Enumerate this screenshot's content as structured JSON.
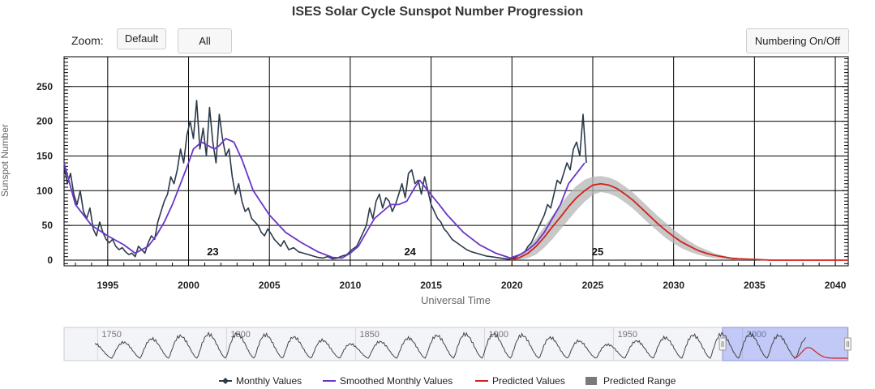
{
  "header": {
    "title": "ISES Solar Cycle Sunspot Number Progression",
    "zoom_label": "Zoom:",
    "btn_default": "Default",
    "btn_all": "All",
    "btn_numbering": "Numbering On/Off"
  },
  "chart_data": {
    "type": "line",
    "title": "ISES Solar Cycle Sunspot Number Progression",
    "xlabel": "Universal Time",
    "ylabel": "Sunspot Number",
    "xlim": [
      1992.3,
      2040.8
    ],
    "ylim": [
      0,
      290
    ],
    "x_ticks": [
      1995,
      2000,
      2005,
      2010,
      2015,
      2020,
      2025,
      2030,
      2035,
      2040
    ],
    "y_ticks": [
      0,
      50,
      100,
      150,
      200,
      250
    ],
    "grid": true,
    "cycle_labels": [
      {
        "label": "23",
        "x": 2001.5
      },
      {
        "label": "24",
        "x": 2013.7
      },
      {
        "label": "25",
        "x": 2025.3
      }
    ],
    "series": [
      {
        "name": "Monthly Values",
        "color": "#2b3a4a",
        "x": [
          1992.3,
          1992.5,
          1992.7,
          1992.9,
          1993.1,
          1993.3,
          1993.5,
          1993.7,
          1993.9,
          1994.1,
          1994.3,
          1994.5,
          1994.7,
          1994.9,
          1995.1,
          1995.3,
          1995.5,
          1995.7,
          1995.9,
          1996.1,
          1996.3,
          1996.5,
          1996.7,
          1996.9,
          1997.1,
          1997.3,
          1997.5,
          1997.7,
          1997.9,
          1998.1,
          1998.3,
          1998.5,
          1998.7,
          1998.9,
          1999.1,
          1999.3,
          1999.5,
          1999.7,
          1999.9,
          2000.1,
          2000.3,
          2000.5,
          2000.7,
          2000.9,
          2001.1,
          2001.3,
          2001.5,
          2001.7,
          2001.9,
          2002.1,
          2002.3,
          2002.5,
          2002.7,
          2002.9,
          2003.1,
          2003.3,
          2003.5,
          2003.7,
          2003.9,
          2004.1,
          2004.3,
          2004.5,
          2004.7,
          2004.9,
          2005.1,
          2005.3,
          2005.5,
          2005.7,
          2005.9,
          2006.2,
          2006.5,
          2006.8,
          2007.1,
          2007.4,
          2007.7,
          2008.0,
          2008.3,
          2008.6,
          2008.9,
          2009.2,
          2009.5,
          2009.8,
          2010.1,
          2010.4,
          2010.7,
          2011.0,
          2011.2,
          2011.4,
          2011.6,
          2011.8,
          2012.0,
          2012.2,
          2012.4,
          2012.6,
          2012.8,
          2013.0,
          2013.2,
          2013.4,
          2013.6,
          2013.8,
          2014.0,
          2014.2,
          2014.4,
          2014.6,
          2014.8,
          2015.0,
          2015.2,
          2015.4,
          2015.6,
          2015.8,
          2016.0,
          2016.3,
          2016.6,
          2016.9,
          2017.2,
          2017.5,
          2017.8,
          2018.1,
          2018.4,
          2018.7,
          2019.0,
          2019.3,
          2019.6,
          2019.9,
          2020.2,
          2020.5,
          2020.8,
          2021.0,
          2021.2,
          2021.4,
          2021.6,
          2021.8,
          2022.0,
          2022.2,
          2022.4,
          2022.6,
          2022.8,
          2023.0,
          2023.2,
          2023.4,
          2023.6,
          2023.8,
          2024.0,
          2024.2,
          2024.4,
          2024.6
        ],
        "values": [
          135,
          110,
          125,
          95,
          80,
          100,
          70,
          60,
          75,
          45,
          35,
          55,
          40,
          30,
          25,
          30,
          20,
          15,
          18,
          12,
          8,
          10,
          5,
          20,
          15,
          10,
          25,
          35,
          30,
          55,
          70,
          85,
          95,
          120,
          110,
          130,
          160,
          140,
          180,
          200,
          175,
          230,
          160,
          190,
          150,
          220,
          170,
          140,
          210,
          175,
          150,
          160,
          120,
          95,
          110,
          85,
          70,
          75,
          60,
          55,
          50,
          40,
          35,
          45,
          38,
          30,
          25,
          20,
          28,
          15,
          18,
          12,
          10,
          8,
          6,
          4,
          3,
          5,
          2,
          3,
          6,
          8,
          15,
          20,
          35,
          50,
          75,
          60,
          85,
          95,
          75,
          90,
          85,
          70,
          80,
          95,
          110,
          90,
          125,
          130,
          110,
          115,
          95,
          120,
          100,
          80,
          70,
          60,
          55,
          45,
          40,
          30,
          25,
          20,
          15,
          12,
          10,
          8,
          6,
          5,
          4,
          3,
          2,
          1,
          4,
          8,
          12,
          20,
          25,
          35,
          45,
          55,
          65,
          80,
          75,
          95,
          115,
          110,
          125,
          140,
          130,
          160,
          170,
          150,
          210,
          140
        ]
      },
      {
        "name": "Smoothed Monthly Values",
        "color": "#6a35c8",
        "x": [
          1992.3,
          1993.0,
          1994.0,
          1995.0,
          1996.0,
          1996.7,
          1997.5,
          1998.0,
          1998.5,
          1999.0,
          1999.5,
          2000.0,
          2000.3,
          2000.8,
          2001.2,
          2001.6,
          2001.9,
          2002.3,
          2002.8,
          2003.3,
          2004.0,
          2005.0,
          2006.0,
          2007.0,
          2008.0,
          2008.9,
          2009.5,
          2010.0,
          2010.5,
          2011.0,
          2011.5,
          2012.0,
          2012.5,
          2013.0,
          2013.5,
          2014.0,
          2014.3,
          2014.8,
          2015.5,
          2016.0,
          2017.0,
          2018.0,
          2019.0,
          2019.9,
          2020.5,
          2021.0,
          2021.5,
          2022.0,
          2022.5,
          2023.0,
          2023.5,
          2024.0,
          2024.5
        ],
        "values": [
          140,
          80,
          50,
          35,
          22,
          10,
          20,
          35,
          55,
          80,
          110,
          140,
          160,
          170,
          165,
          160,
          165,
          175,
          170,
          145,
          100,
          65,
          40,
          25,
          12,
          4,
          3,
          10,
          20,
          40,
          60,
          70,
          80,
          80,
          85,
          105,
          115,
          100,
          80,
          65,
          40,
          22,
          10,
          3,
          8,
          15,
          25,
          40,
          60,
          80,
          110,
          125,
          140
        ]
      },
      {
        "name": "Predicted Values",
        "color": "#d0221c",
        "x": [
          2019.9,
          2020.5,
          2021.0,
          2021.5,
          2022.0,
          2022.5,
          2023.0,
          2023.5,
          2024.0,
          2024.5,
          2025.0,
          2025.5,
          2026.0,
          2026.5,
          2027.0,
          2027.5,
          2028.0,
          2028.5,
          2029.0,
          2029.5,
          2030.0,
          2030.5,
          2031.0,
          2031.5,
          2032.0,
          2032.5,
          2033.0,
          2033.5,
          2034.0,
          2035.0,
          2036.0,
          2037.0,
          2038.0,
          2039.0,
          2040.0,
          2040.8
        ],
        "values": [
          0,
          4,
          10,
          20,
          33,
          48,
          62,
          77,
          90,
          100,
          108,
          110,
          108,
          103,
          95,
          86,
          75,
          64,
          53,
          43,
          34,
          26,
          20,
          14,
          10,
          7,
          5,
          3,
          2,
          1,
          0,
          0,
          0,
          0,
          0,
          0
        ]
      },
      {
        "name": "Predicted Range",
        "color": "#8c8c8c",
        "x": [
          2019.9,
          2020.5,
          2021.0,
          2021.5,
          2022.0,
          2022.5,
          2023.0,
          2023.5,
          2024.0,
          2024.5,
          2025.0,
          2025.5,
          2026.0,
          2026.5,
          2027.0,
          2027.5,
          2028.0,
          2028.5,
          2029.0,
          2029.5,
          2030.0,
          2030.5,
          2031.0,
          2031.5,
          2032.0,
          2032.5,
          2033.0,
          2033.5,
          2034.0,
          2035.0,
          2036.0
        ],
        "upper": [
          1,
          8,
          18,
          32,
          48,
          64,
          80,
          95,
          107,
          116,
          120,
          121,
          119,
          114,
          106,
          97,
          86,
          75,
          64,
          54,
          44,
          35,
          27,
          20,
          15,
          10,
          7,
          4,
          2,
          1,
          0
        ],
        "lower": [
          0,
          1,
          3,
          8,
          18,
          30,
          44,
          58,
          72,
          84,
          94,
          98,
          96,
          91,
          83,
          74,
          63,
          52,
          42,
          32,
          24,
          17,
          12,
          8,
          5,
          3,
          2,
          1,
          0,
          0,
          0
        ]
      }
    ],
    "navigator": {
      "xlim": [
        1737,
        2041
      ],
      "x_ticks": [
        1750,
        1800,
        1850,
        1900,
        1950,
        2000
      ],
      "selection": [
        1992.3,
        2040.8
      ]
    },
    "legend": {
      "position": "bottom",
      "items": [
        "Monthly Values",
        "Smoothed Monthly Values",
        "Predicted Values",
        "Predicted Range"
      ]
    }
  }
}
